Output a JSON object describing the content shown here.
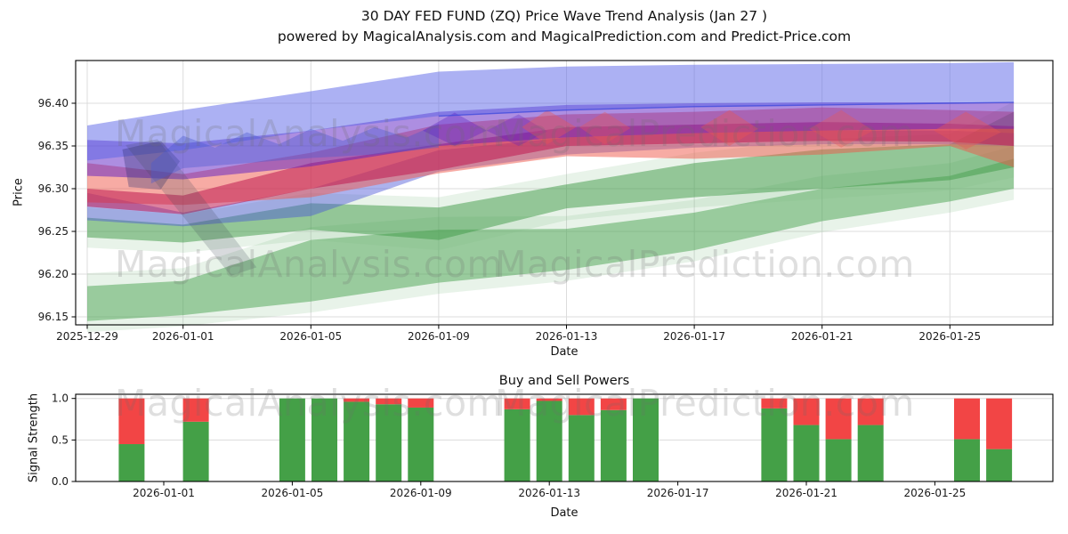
{
  "title": {
    "line1": "30 DAY FED FUND (ZQ) Price Wave Trend Analysis (Jan 27 )",
    "line2": "powered by MagicalAnalysis.com and MagicalPrediction.com and Predict-Price.com"
  },
  "watermarks": {
    "analysis": "MagicalAnalysis.com",
    "prediction": "MagicalPrediction.com"
  },
  "chart_data": [
    {
      "type": "area",
      "title": "30 DAY FED FUND (ZQ) Price Wave Trend Analysis (Jan 27 )",
      "subtitle": "powered by MagicalAnalysis.com and MagicalPrediction.com and Predict-Price.com",
      "xlabel": "Date",
      "ylabel": "Price",
      "ylim": [
        96.142,
        96.45
      ],
      "grid": true,
      "legend": "none",
      "x_tick_labels": [
        "2025-12-29",
        "2026-01-01",
        "2026-01-05",
        "2026-01-09",
        "2026-01-13",
        "2026-01-17",
        "2026-01-21",
        "2026-01-25"
      ],
      "x_tick_days": [
        0,
        3,
        7,
        11,
        15,
        19,
        23,
        27
      ],
      "y_ticks": [
        96.15,
        96.2,
        96.25,
        96.3,
        96.35,
        96.4
      ],
      "y_tick_labels": [
        "96.15",
        "96.20",
        "96.25",
        "96.30",
        "96.35",
        "96.40"
      ],
      "anchor_dates": [
        "2025-12-29",
        "2026-01-01",
        "2026-01-05",
        "2026-01-09",
        "2026-01-13",
        "2026-01-17",
        "2026-01-21",
        "2026-01-25",
        "2026-01-27"
      ],
      "anchor_days": [
        0,
        3,
        7,
        11,
        15,
        19,
        23,
        27,
        29
      ],
      "bands": [
        {
          "name": "light-green-echo",
          "color": "#7fbf83",
          "opacity": 0.18,
          "upper": [
            96.201,
            96.207,
            96.255,
            96.267,
            96.268,
            96.287,
            96.315,
            96.33,
            96.35
          ],
          "lower": [
            96.132,
            96.139,
            96.155,
            96.177,
            96.192,
            96.215,
            96.249,
            96.272,
            96.287
          ]
        },
        {
          "name": "light-green-lower-band",
          "color": "#4aa352",
          "opacity": 0.5,
          "upper": [
            96.186,
            96.192,
            96.24,
            96.252,
            96.253,
            96.272,
            96.3,
            96.315,
            96.335
          ],
          "lower": [
            96.145,
            96.152,
            96.168,
            96.19,
            96.205,
            96.228,
            96.262,
            96.285,
            96.3
          ]
        },
        {
          "name": "green-mid-echo",
          "color": "#7fbf83",
          "opacity": 0.18,
          "upper": [
            96.278,
            96.27,
            96.295,
            96.29,
            96.317,
            96.342,
            96.358,
            96.364,
            96.402
          ],
          "lower": [
            96.231,
            96.225,
            96.24,
            96.228,
            96.263,
            96.278,
            96.288,
            96.298,
            96.313
          ]
        },
        {
          "name": "green-mid-band",
          "color": "#3d9a45",
          "opacity": 0.5,
          "upper": [
            96.266,
            96.258,
            96.283,
            96.278,
            96.305,
            96.33,
            96.346,
            96.352,
            96.39
          ],
          "lower": [
            96.243,
            96.237,
            96.252,
            96.24,
            96.277,
            96.29,
            96.3,
            96.31,
            96.325
          ]
        },
        {
          "name": "blue-lower-band",
          "color": "#4a55d8",
          "opacity": 0.45,
          "upper": [
            96.295,
            96.272,
            96.3,
            96.345,
            96.36,
            96.365,
            96.368,
            96.368,
            96.365
          ],
          "lower": [
            96.263,
            96.256,
            96.268,
            96.32,
            96.34,
            96.348,
            96.352,
            96.352,
            96.35
          ]
        },
        {
          "name": "salmon-band",
          "color": "#f0584a",
          "opacity": 0.5,
          "upper": [
            96.33,
            96.317,
            96.342,
            96.375,
            96.387,
            96.39,
            96.395,
            96.392,
            96.39
          ],
          "lower": [
            96.284,
            96.281,
            96.29,
            96.318,
            96.338,
            96.335,
            96.34,
            96.35,
            96.325
          ]
        },
        {
          "name": "crimson-band",
          "color": "#c01a50",
          "opacity": 0.55,
          "upper": [
            96.3,
            96.292,
            96.33,
            96.352,
            96.372,
            96.375,
            96.378,
            96.376,
            96.373
          ],
          "lower": [
            96.279,
            96.27,
            96.3,
            96.322,
            96.35,
            96.353,
            96.356,
            96.355,
            96.35
          ]
        },
        {
          "name": "purple-band",
          "color": "#5c1ec4",
          "opacity": 0.5,
          "upper": [
            96.357,
            96.353,
            96.368,
            96.39,
            96.398,
            96.4,
            96.401,
            96.401,
            96.401
          ],
          "lower": [
            96.315,
            96.311,
            96.326,
            96.35,
            96.36,
            96.365,
            96.368,
            96.37,
            96.37
          ]
        },
        {
          "name": "blue-upper-band",
          "color": "#5a64e8",
          "opacity": 0.5,
          "upper": [
            96.374,
            96.392,
            96.414,
            96.437,
            96.443,
            96.445,
            96.446,
            96.447,
            96.448
          ],
          "lower": [
            96.333,
            96.345,
            96.368,
            96.385,
            96.392,
            96.396,
            96.398,
            96.4,
            96.401
          ]
        }
      ],
      "overlays": [
        {
          "name": "dark-blob",
          "kind": "polygon",
          "color": "#2f2f6e",
          "opacity": 0.33,
          "points": [
            [
              1.1,
              96.346
            ],
            [
              2.3,
              96.356
            ],
            [
              2.9,
              96.332
            ],
            [
              2.3,
              96.299
            ],
            [
              1.3,
              96.302
            ]
          ]
        },
        {
          "name": "dark-streak",
          "kind": "polygon",
          "color": "#3c4455",
          "opacity": 0.2,
          "points": [
            [
              1.2,
              96.351
            ],
            [
              2.2,
              96.358
            ],
            [
              5.3,
              96.208
            ],
            [
              4.5,
              96.198
            ]
          ]
        },
        {
          "name": "blue-wave",
          "kind": "polygon",
          "color": "#4b5ad0",
          "opacity": 0.4,
          "points": [
            [
              2,
              96.33
            ],
            [
              3,
              96.362
            ],
            [
              4,
              96.348
            ],
            [
              5,
              96.366
            ],
            [
              6,
              96.352
            ],
            [
              7,
              96.37
            ],
            [
              8,
              96.356
            ],
            [
              9,
              96.372
            ],
            [
              10,
              96.36
            ],
            [
              11,
              96.376
            ],
            [
              11,
              96.348
            ],
            [
              9,
              96.34
            ],
            [
              7,
              96.336
            ],
            [
              5,
              96.33
            ],
            [
              3,
              96.324
            ],
            [
              2,
              96.306
            ]
          ]
        },
        {
          "name": "purple-diamond-1",
          "kind": "polygon",
          "color": "#5c1ec4",
          "opacity": 0.35,
          "points": [
            [
              10.5,
              96.368
            ],
            [
              11.5,
              96.389
            ],
            [
              12.5,
              96.368
            ],
            [
              11.5,
              96.35
            ]
          ]
        },
        {
          "name": "purple-diamond-2",
          "kind": "polygon",
          "color": "#5c1ec4",
          "opacity": 0.3,
          "points": [
            [
              12.5,
              96.368
            ],
            [
              13.5,
              96.387
            ],
            [
              14.4,
              96.367
            ],
            [
              13.5,
              96.35
            ]
          ]
        },
        {
          "name": "red-diamond-1",
          "kind": "polygon",
          "color": "#e85555",
          "opacity": 0.4,
          "points": [
            [
              13.6,
              96.372
            ],
            [
              14.4,
              96.392
            ],
            [
              15.3,
              96.372
            ],
            [
              14.4,
              96.352
            ]
          ]
        },
        {
          "name": "red-diamond-2",
          "kind": "polygon",
          "color": "#e85555",
          "opacity": 0.35,
          "points": [
            [
              15.4,
              96.372
            ],
            [
              16.2,
              96.39
            ],
            [
              17.0,
              96.371
            ],
            [
              16.2,
              96.352
            ]
          ]
        },
        {
          "name": "red-diamond-3",
          "kind": "polygon",
          "color": "#e85555",
          "opacity": 0.4,
          "points": [
            [
              19.2,
              96.372
            ],
            [
              20.1,
              96.392
            ],
            [
              21.0,
              96.37
            ],
            [
              20.1,
              96.35
            ]
          ]
        },
        {
          "name": "red-diamond-4",
          "kind": "polygon",
          "color": "#e85555",
          "opacity": 0.35,
          "points": [
            [
              22.6,
              96.37
            ],
            [
              23.6,
              96.392
            ],
            [
              24.6,
              96.368
            ],
            [
              23.6,
              96.348
            ]
          ]
        },
        {
          "name": "red-diamond-5",
          "kind": "polygon",
          "color": "#e85555",
          "opacity": 0.4,
          "points": [
            [
              26.5,
              96.368
            ],
            [
              27.5,
              96.39
            ],
            [
              28.6,
              96.366
            ],
            [
              27.5,
              96.346
            ]
          ]
        },
        {
          "name": "blue-band-bottom-edge",
          "kind": "line",
          "color": "#3c48dc",
          "opacity": 0.75,
          "width": 1.4,
          "points": [
            [
              11,
              96.385
            ],
            [
              15,
              96.392
            ],
            [
              19,
              96.396
            ],
            [
              23,
              96.398
            ],
            [
              27,
              96.4
            ],
            [
              29,
              96.401
            ]
          ]
        }
      ]
    },
    {
      "type": "bar",
      "title": "Buy and Sell Powers",
      "xlabel": "Date",
      "ylabel": "Signal Strength",
      "ylim": [
        0,
        1.05
      ],
      "stacked": true,
      "y_ticks": [
        0.0,
        0.5,
        1.0
      ],
      "y_tick_labels": [
        "0.0",
        "0.5",
        "1.0"
      ],
      "x_tick_labels": [
        "2026-01-01",
        "2026-01-05",
        "2026-01-09",
        "2026-01-13",
        "2026-01-17",
        "2026-01-21",
        "2026-01-25"
      ],
      "x_tick_days": [
        3,
        7,
        11,
        15,
        19,
        23,
        27
      ],
      "categories": [
        "2025-12-31",
        "2026-01-02",
        "2026-01-05",
        "2026-01-06",
        "2026-01-07",
        "2026-01-08",
        "2026-01-09",
        "2026-01-12",
        "2026-01-13",
        "2026-01-14",
        "2026-01-15",
        "2026-01-16",
        "2026-01-20",
        "2026-01-21",
        "2026-01-22",
        "2026-01-23",
        "2026-01-26",
        "2026-01-27"
      ],
      "bar_days": [
        2,
        4,
        7,
        8,
        9,
        10,
        11,
        14,
        15,
        16,
        17,
        18,
        22,
        23,
        24,
        25,
        28,
        29
      ],
      "series": [
        {
          "name": "Buy",
          "color": "#44a047",
          "values": [
            0.45,
            0.72,
            1.0,
            1.0,
            0.96,
            0.93,
            0.89,
            0.87,
            0.97,
            0.8,
            0.86,
            1.0,
            0.88,
            0.68,
            0.51,
            0.68,
            0.51,
            0.39
          ]
        },
        {
          "name": "Sell",
          "color": "#f24545",
          "values": [
            0.55,
            0.28,
            0.0,
            0.0,
            0.04,
            0.07,
            0.11,
            0.13,
            0.03,
            0.2,
            0.14,
            0.0,
            0.12,
            0.32,
            0.49,
            0.32,
            0.49,
            0.61
          ]
        }
      ]
    }
  ]
}
